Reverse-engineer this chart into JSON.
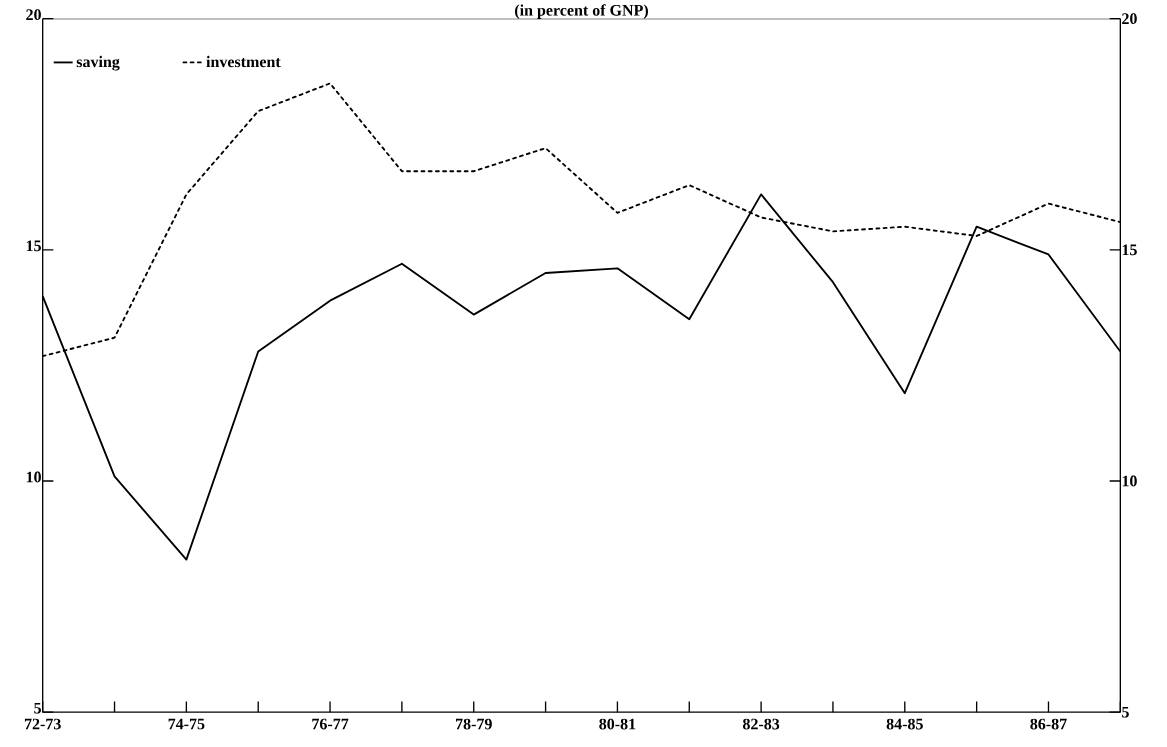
{
  "chart_data": {
    "type": "line",
    "title": "(in percent of GNP)",
    "categories": [
      "72-73",
      null,
      "74-75",
      null,
      "76-77",
      null,
      "78-79",
      null,
      "80-81",
      null,
      "82-83",
      null,
      "84-85",
      null,
      "86-87",
      null
    ],
    "series": [
      {
        "name": "saving",
        "color": "#000000",
        "line_style": "solid",
        "values": [
          14.0,
          10.1,
          8.3,
          12.8,
          13.9,
          14.7,
          13.6,
          14.5,
          14.6,
          13.5,
          16.2,
          14.3,
          11.9,
          15.5,
          14.9,
          12.8
        ]
      },
      {
        "name": "investment",
        "color": "#000000",
        "line_style": "dotted",
        "values": [
          12.7,
          13.1,
          16.2,
          18.0,
          18.6,
          16.7,
          16.7,
          17.2,
          15.8,
          16.4,
          15.7,
          15.4,
          15.5,
          15.3,
          16.0,
          15.6
        ]
      }
    ],
    "ylim": [
      5,
      20
    ],
    "yticks": [
      5,
      10,
      15,
      20
    ],
    "y2lim": [
      5,
      20
    ],
    "y2ticks": [
      5,
      10,
      15,
      20
    ],
    "legend": "top left",
    "grid": false,
    "marker": "none"
  }
}
